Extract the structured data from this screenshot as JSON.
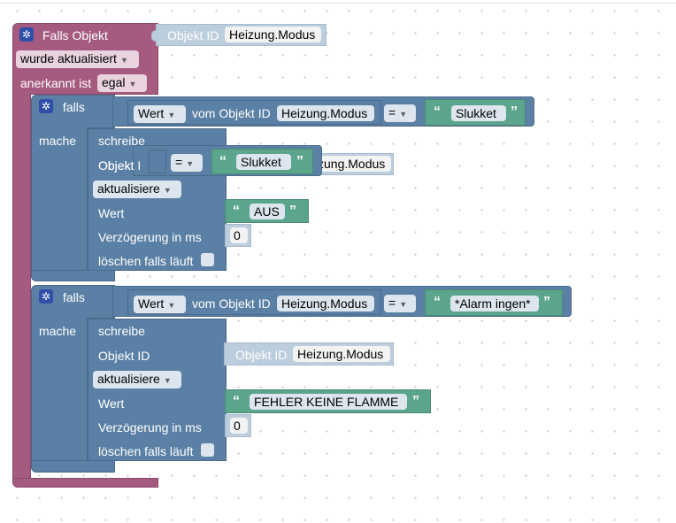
{
  "trigger": {
    "title": "Falls Objekt",
    "object_id_label": "Objekt ID",
    "object_id": "Heizung.Modus",
    "event": "wurde aktualisiert",
    "ack_label": "anerkannt ist",
    "ack_value": "egal"
  },
  "if_blocks": [
    {
      "falls_label": "falls",
      "mache_label": "mache",
      "compare_source": "Wert",
      "compare_from": "vom Objekt ID",
      "compare_object": "Heizung.Modus",
      "operator": "=",
      "compare_value": "Slukket",
      "write": {
        "title": "schreibe",
        "object_id_label": "Objekt ID",
        "object_id": "Heizung.Modus",
        "mode": "aktualisiere",
        "value_label": "Wert",
        "value": "AUS",
        "delay_label": "Verzögerung in ms",
        "delay": "0",
        "clear_label": "löschen falls läuft"
      }
    },
    {
      "falls_label": "falls",
      "mache_label": "mache",
      "compare_source": "Wert",
      "compare_from": "vom Objekt ID",
      "compare_object": "Heizung.Modus",
      "operator": "=",
      "compare_value": "*Alarm ingen*",
      "write": {
        "title": "schreibe",
        "object_id_label": "Objekt ID",
        "object_id": "Heizung.Modus",
        "mode": "aktualisiere",
        "value_label": "Wert",
        "value": "FEHLER KEINE FLAMME",
        "delay_label": "Verzögerung in ms",
        "delay": "0",
        "clear_label": "löschen falls läuft"
      }
    }
  ],
  "floating_compare": {
    "operator": "=",
    "value": "Slukket",
    "partial_object_id_label": "Objekt I",
    "partial_object_id": "zung.Modus"
  },
  "colors": {
    "trigger": "#a55b80",
    "logic": "#5b80a5",
    "text": "#5ba58c",
    "object_id": "#bccddd"
  }
}
